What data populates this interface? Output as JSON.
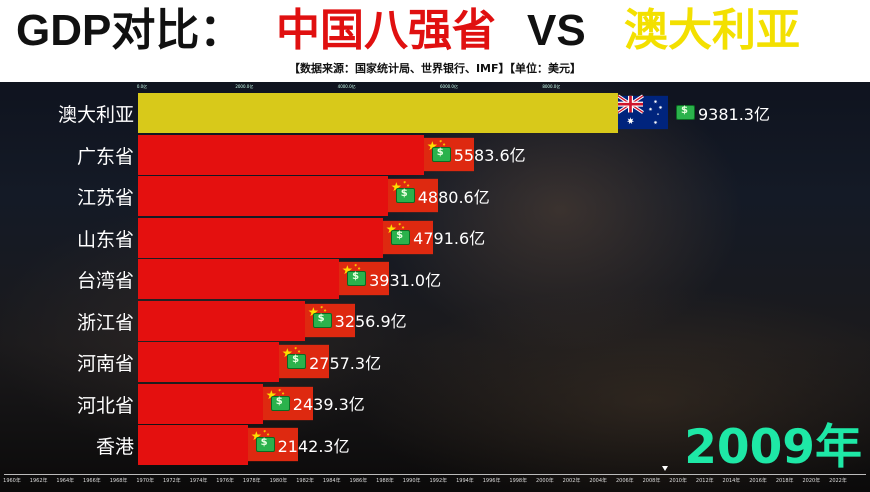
{
  "header": {
    "title_part1": "GDP对比：",
    "title_part2": "中国八强省",
    "title_part3": "VS",
    "title_part4": "澳大利亚",
    "subtitle": "【数据来源：国家统计局、世界银行、IMF】【单位：美元】"
  },
  "year_label": "2009年",
  "colors": {
    "australia_bar": "#d8c91a",
    "china_bar": "#e4100f",
    "year": "#1ee8a6"
  },
  "chart_data": {
    "type": "bar",
    "orientation": "horizontal",
    "title": "GDP对比：中国八强省 VS 澳大利亚",
    "categories": [
      "澳大利亚",
      "广东省",
      "江苏省",
      "山东省",
      "台湾省",
      "浙江省",
      "河南省",
      "河北省",
      "香港"
    ],
    "values": [
      9381.3,
      5583.6,
      4880.6,
      4791.6,
      3931.0,
      3256.9,
      2757.3,
      2439.3,
      2142.3
    ],
    "value_labels": [
      "9381.3亿",
      "5583.6亿",
      "4880.6亿",
      "4791.6亿",
      "3931.0亿",
      "3256.9亿",
      "2757.3亿",
      "2439.3亿",
      "2142.3亿"
    ],
    "flags": [
      "australia-flag",
      "china-flag",
      "china-flag",
      "china-flag",
      "china-flag",
      "china-flag",
      "china-flag",
      "china-flag",
      "china-flag"
    ],
    "value_axis_ticks": [
      "0.0亿",
      "2000.0亿",
      "4000.0亿",
      "6000.0亿",
      "8000.0亿"
    ],
    "xlim": [
      0,
      9381.3
    ],
    "timeline_years": [
      "1960年",
      "1962年",
      "1964年",
      "1966年",
      "1968年",
      "1970年",
      "1972年",
      "1974年",
      "1976年",
      "1978年",
      "1980年",
      "1982年",
      "1984年",
      "1986年",
      "1988年",
      "1990年",
      "1992年",
      "1994年",
      "1996年",
      "1998年",
      "2000年",
      "2002年",
      "2004年",
      "2006年",
      "2008年",
      "2010年",
      "2012年",
      "2014年",
      "2016年",
      "2018年",
      "2020年",
      "2022年"
    ],
    "current_year": 2009
  }
}
